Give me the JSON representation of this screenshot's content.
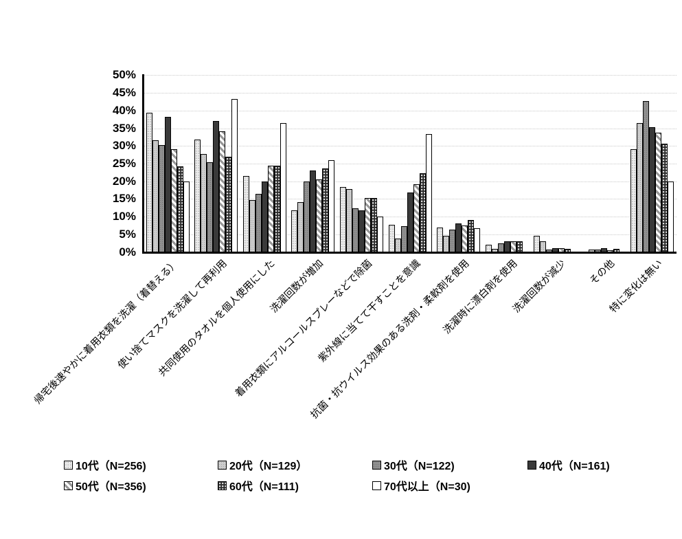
{
  "chart_data": {
    "type": "bar",
    "title": "",
    "xlabel": "",
    "ylabel": "",
    "ylim": [
      0,
      50
    ],
    "ytick_step": 5,
    "yticks": [
      "0%",
      "5%",
      "10%",
      "15%",
      "20%",
      "25%",
      "30%",
      "35%",
      "40%",
      "45%",
      "50%"
    ],
    "grid": true,
    "legend_position": "bottom",
    "categories": [
      "帰宅後速やかに着用衣類を洗濯（着替える）",
      "使い捨てマスクを洗濯して再利用",
      "共同使用のタオルを個人使用にした",
      "洗濯回数が増加",
      "着用衣類にアルコールスプレーなどで除菌",
      "紫外線に当てて干すことを意識",
      "抗菌・抗ウイルス効果のある洗剤・柔軟剤を使用",
      "洗濯時に漂白剤を使用",
      "洗濯回数が減少",
      "その他",
      "特に変化は無い"
    ],
    "series": [
      {
        "name": "10代（N=256)",
        "pattern": "light-fine-dot",
        "values": [
          39.4,
          31.8,
          21.5,
          11.7,
          18.4,
          7.8,
          7.0,
          2.0,
          4.7,
          0,
          29.1
        ]
      },
      {
        "name": "20代（N=129）",
        "pattern": "light-gray-dot",
        "values": [
          31.7,
          27.8,
          14.7,
          14.2,
          17.8,
          3.9,
          4.7,
          1.0,
          3.1,
          0.8,
          36.4
        ]
      },
      {
        "name": "30代（N=122)",
        "pattern": "medium-gray-dot",
        "values": [
          30.3,
          25.4,
          16.4,
          20.0,
          12.3,
          7.4,
          6.3,
          2.5,
          0.8,
          0.8,
          42.6
        ]
      },
      {
        "name": "40代（N=161)",
        "pattern": "dark-solid",
        "values": [
          38.3,
          37.0,
          20.0,
          23.0,
          11.8,
          16.8,
          8.1,
          3.1,
          1.2,
          1.2,
          35.2
        ]
      },
      {
        "name": "50代（N=356)",
        "pattern": "diagonal-stripe",
        "values": [
          29.1,
          34.2,
          24.5,
          20.6,
          15.2,
          19.1,
          7.5,
          3.1,
          1.1,
          0.6,
          33.7
        ]
      },
      {
        "name": "60代（N=111)",
        "pattern": "dark-white-dot",
        "values": [
          24.2,
          27.0,
          24.4,
          23.6,
          15.3,
          22.2,
          9.0,
          3.1,
          0.9,
          0.9,
          30.6
        ]
      },
      {
        "name": "70代以上（N=30)",
        "pattern": "white",
        "values": [
          20.0,
          43.3,
          36.5,
          26.0,
          10.0,
          33.3,
          6.7,
          0,
          0,
          0,
          20.0
        ]
      }
    ]
  },
  "colors": {
    "bar_outline": "#000000",
    "gridline": "#c9c9c9",
    "axis": "#000000",
    "text": "#000000"
  }
}
